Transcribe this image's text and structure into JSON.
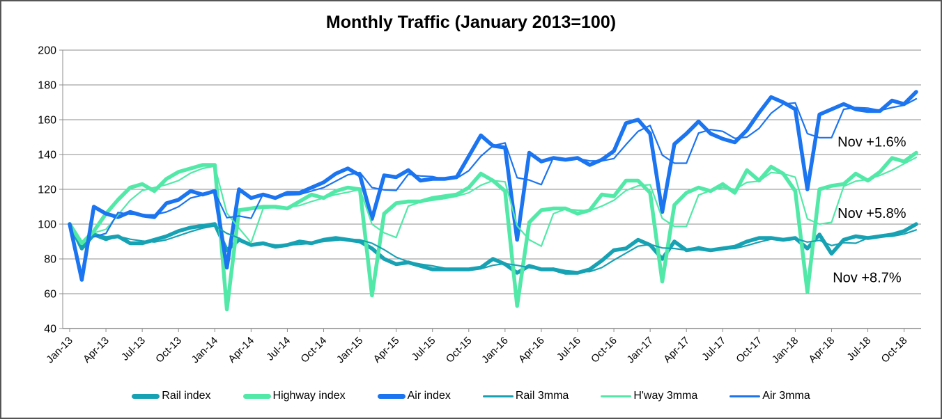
{
  "chart_data": {
    "type": "line",
    "title": "Monthly Traffic (January 2013=100)",
    "xlabel": "",
    "ylabel": "",
    "ylim": [
      40,
      200
    ],
    "y_ticks": [
      40,
      60,
      80,
      100,
      120,
      140,
      160,
      180,
      200
    ],
    "grid": true,
    "legend_position": "bottom",
    "x_start_month": "Jan-13",
    "x_end_month": "Nov-18",
    "x_tick_every_months": 3,
    "x_tick_labels": [
      "Jan-13",
      "Apr-13",
      "Jul-13",
      "Oct-13",
      "Jan-14",
      "Apr-14",
      "Jul-14",
      "Oct-14",
      "Jan-15",
      "Apr-15",
      "Jul-15",
      "Oct-15",
      "Jan-16",
      "Apr-16",
      "Jul-16",
      "Oct-16",
      "Jan-17",
      "Apr-17",
      "Jul-17",
      "Oct-17",
      "Jan-18",
      "Apr-18",
      "Jul-18",
      "Oct-18"
    ],
    "colors": {
      "rail": "#17A2B4",
      "highway": "#52E9A8",
      "air": "#1B74F0",
      "grid": "#8C8C8C",
      "axis": "#8C8C8C",
      "frame_border": "#555555"
    },
    "series": [
      {
        "name": "Rail index",
        "color_key": "rail",
        "thickness": "thick",
        "values": [
          100,
          86,
          94,
          92,
          93,
          89,
          89,
          91,
          93,
          96,
          98,
          99,
          100,
          85,
          91,
          88,
          89,
          87,
          88,
          90,
          89,
          91,
          92,
          91,
          90,
          86,
          80,
          77,
          78,
          76,
          74,
          74,
          74,
          74,
          75,
          80,
          77,
          72,
          76,
          74,
          74,
          72,
          72,
          74,
          79,
          85,
          86,
          91,
          88,
          80,
          90,
          85,
          86,
          85,
          86,
          87,
          90,
          92,
          92,
          91,
          92,
          86,
          94,
          83,
          91,
          93,
          92,
          93,
          94,
          96,
          100
        ]
      },
      {
        "name": "Highway index",
        "color_key": "highway",
        "thickness": "thick",
        "values": [
          100,
          89,
          96,
          106,
          114,
          121,
          123,
          119,
          126,
          130,
          132,
          134,
          134,
          51,
          108,
          109,
          110,
          110,
          109,
          113,
          117,
          115,
          119,
          121,
          120,
          59,
          106,
          112,
          113,
          113,
          115,
          116,
          117,
          121,
          129,
          125,
          119,
          53,
          101,
          108,
          109,
          109,
          106,
          108,
          117,
          116,
          125,
          125,
          118,
          67,
          111,
          118,
          121,
          119,
          123,
          118,
          131,
          125,
          133,
          129,
          119,
          61,
          120,
          122,
          123,
          129,
          125,
          130,
          138,
          136,
          141
        ]
      },
      {
        "name": "Air index",
        "color_key": "air",
        "thickness": "thick",
        "values": [
          100,
          68,
          110,
          106,
          104,
          107,
          105,
          104,
          112,
          114,
          119,
          117,
          119,
          75,
          120,
          115,
          117,
          115,
          118,
          118,
          121,
          124,
          129,
          132,
          128,
          103,
          128,
          127,
          131,
          125,
          126,
          126,
          127,
          139,
          151,
          145,
          144,
          91,
          141,
          136,
          138,
          137,
          138,
          134,
          137,
          142,
          158,
          160,
          152,
          107,
          146,
          152,
          159,
          152,
          149,
          147,
          154,
          164,
          173,
          170,
          166,
          120,
          163,
          166,
          169,
          166,
          165,
          165,
          171,
          169,
          176
        ]
      },
      {
        "name": "Rail 3mma",
        "color_key": "rail",
        "thickness": "thin",
        "derived_from": "Rail index",
        "derivation": "3-month moving average"
      },
      {
        "name": "H'way 3mma",
        "color_key": "highway",
        "thickness": "thin",
        "derived_from": "Highway index",
        "derivation": "3-month moving average"
      },
      {
        "name": "Air 3mma",
        "color_key": "air",
        "thickness": "thin",
        "derived_from": "Air index",
        "derivation": "3-month moving average"
      }
    ],
    "annotations": [
      {
        "text": "Nov +1.6%",
        "month_index": 63.5,
        "value_anchor": 147
      },
      {
        "text": "Nov +5.8%",
        "month_index": 63.5,
        "value_anchor": 106
      },
      {
        "text": "Nov +8.7%",
        "month_index": 63.1,
        "value_anchor": 69
      }
    ]
  }
}
